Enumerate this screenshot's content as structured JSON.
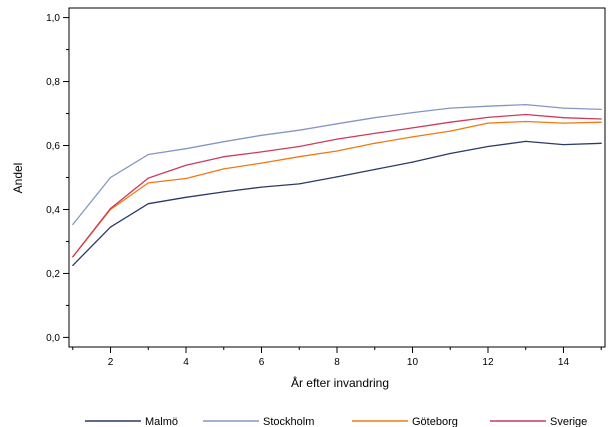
{
  "chart_data": {
    "type": "line",
    "title": "",
    "xlabel": "År efter invandring",
    "ylabel": "Andel",
    "x": [
      1,
      2,
      3,
      4,
      5,
      6,
      7,
      8,
      9,
      10,
      11,
      12,
      13,
      14,
      15
    ],
    "xlim": [
      0.9,
      15.1
    ],
    "ylim": [
      -0.03,
      1.03
    ],
    "xticks": [
      2,
      4,
      6,
      8,
      10,
      12,
      14
    ],
    "yticks": [
      0.0,
      0.2,
      0.4,
      0.6,
      0.8,
      1.0
    ],
    "ytick_labels": [
      "0,0",
      "0,2",
      "0,4",
      "0,6",
      "0,8",
      "1,0"
    ],
    "grid": false,
    "legend_position": "bottom",
    "series": [
      {
        "name": "Malmö",
        "color": "#2b3a67",
        "values": [
          0.225,
          0.345,
          0.418,
          0.438,
          0.455,
          0.47,
          0.48,
          0.502,
          0.525,
          0.548,
          0.575,
          0.597,
          0.613,
          0.603,
          0.607
        ]
      },
      {
        "name": "Stockholm",
        "color": "#8496c4",
        "values": [
          0.353,
          0.5,
          0.572,
          0.59,
          0.612,
          0.632,
          0.648,
          0.668,
          0.687,
          0.703,
          0.717,
          0.723,
          0.728,
          0.717,
          0.713
        ]
      },
      {
        "name": "Göteborg",
        "color": "#f07a12",
        "values": [
          0.252,
          0.4,
          0.483,
          0.497,
          0.527,
          0.545,
          0.565,
          0.583,
          0.607,
          0.627,
          0.645,
          0.67,
          0.675,
          0.67,
          0.673
        ]
      },
      {
        "name": "Sverige",
        "color": "#cc3b5e",
        "values": [
          0.252,
          0.403,
          0.498,
          0.538,
          0.565,
          0.58,
          0.597,
          0.62,
          0.638,
          0.655,
          0.673,
          0.688,
          0.697,
          0.687,
          0.683
        ]
      }
    ]
  }
}
